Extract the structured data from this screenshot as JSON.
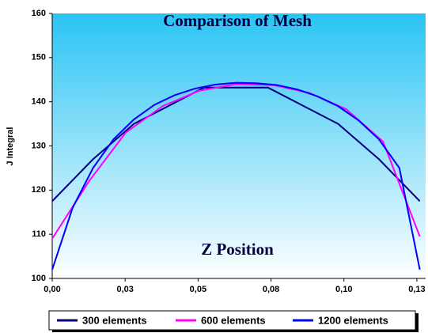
{
  "chart_data": {
    "type": "line",
    "title": "Comparison of Mesh",
    "x_label": "Z Position",
    "y_label": "J Integral",
    "xlim": [
      0,
      0.128
    ],
    "ylim": [
      100,
      160
    ],
    "xticks": [
      {
        "value": 0,
        "label": "0,00"
      },
      {
        "value": 0.025,
        "label": "0,03"
      },
      {
        "value": 0.05,
        "label": "0,05"
      },
      {
        "value": 0.075,
        "label": "0,08"
      },
      {
        "value": 0.1,
        "label": "0,10"
      },
      {
        "value": 0.125,
        "label": "0,13"
      }
    ],
    "yticks": [
      100,
      110,
      120,
      130,
      140,
      150,
      160
    ],
    "legend": "bottom",
    "series": [
      {
        "name": "300 elements",
        "color": "#000080",
        "x": [
          0,
          0.014,
          0.028,
          0.052,
          0.074,
          0.098,
          0.112,
          0.126
        ],
        "values": [
          117.5,
          127,
          135,
          143.2,
          143.2,
          135,
          127,
          117.5
        ]
      },
      {
        "name": "600 elements",
        "color": "#ff00ff",
        "x": [
          0,
          0.0126,
          0.0252,
          0.0378,
          0.0504,
          0.063,
          0.0756,
          0.0882,
          0.1008,
          0.1134,
          0.126
        ],
        "values": [
          109,
          122,
          133,
          139,
          142.5,
          144,
          143.8,
          142,
          138.3,
          131,
          109.5
        ]
      },
      {
        "name": "1200 elements",
        "color": "#0000ff",
        "x": [
          0,
          0.007,
          0.014,
          0.021,
          0.028,
          0.035,
          0.042,
          0.049,
          0.056,
          0.063,
          0.07,
          0.077,
          0.084,
          0.091,
          0.098,
          0.105,
          0.112,
          0.119,
          0.126
        ],
        "values": [
          102,
          116,
          125,
          131.5,
          136,
          139.3,
          141.5,
          143,
          143.9,
          144.3,
          144.2,
          143.8,
          142.8,
          141.2,
          139,
          135.8,
          131.5,
          125,
          102
        ]
      }
    ]
  }
}
